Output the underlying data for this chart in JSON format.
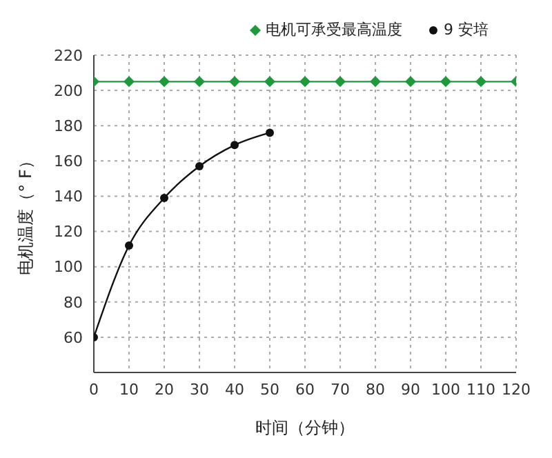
{
  "chart_data": {
    "type": "line",
    "xlabel": "时间（分钟）",
    "ylabel": "电机温度（° F）",
    "xlim": [
      0,
      120
    ],
    "xticks": [
      0,
      10,
      20,
      30,
      40,
      50,
      60,
      70,
      80,
      90,
      100,
      110,
      120
    ],
    "ylim": [
      40,
      220
    ],
    "yticks": [
      {
        "value": 40,
        "label": null
      },
      60,
      80,
      100,
      120,
      140,
      160,
      180,
      200,
      220
    ],
    "grid": true,
    "legend": "top right",
    "series": [
      {
        "name": "电机可承受最高温度",
        "color": "#1e9a3c",
        "marker": "diamond",
        "x": [
          0,
          10,
          20,
          30,
          40,
          50,
          60,
          70,
          80,
          90,
          100,
          110,
          120
        ],
        "values": [
          205,
          205,
          205,
          205,
          205,
          205,
          205,
          205,
          205,
          205,
          205,
          205,
          205
        ]
      },
      {
        "name": "9 安培",
        "color": "#111111",
        "marker": "circle",
        "x": [
          0,
          10,
          20,
          30,
          40,
          50
        ],
        "values": [
          60,
          112,
          139,
          157,
          169,
          176
        ]
      }
    ]
  }
}
